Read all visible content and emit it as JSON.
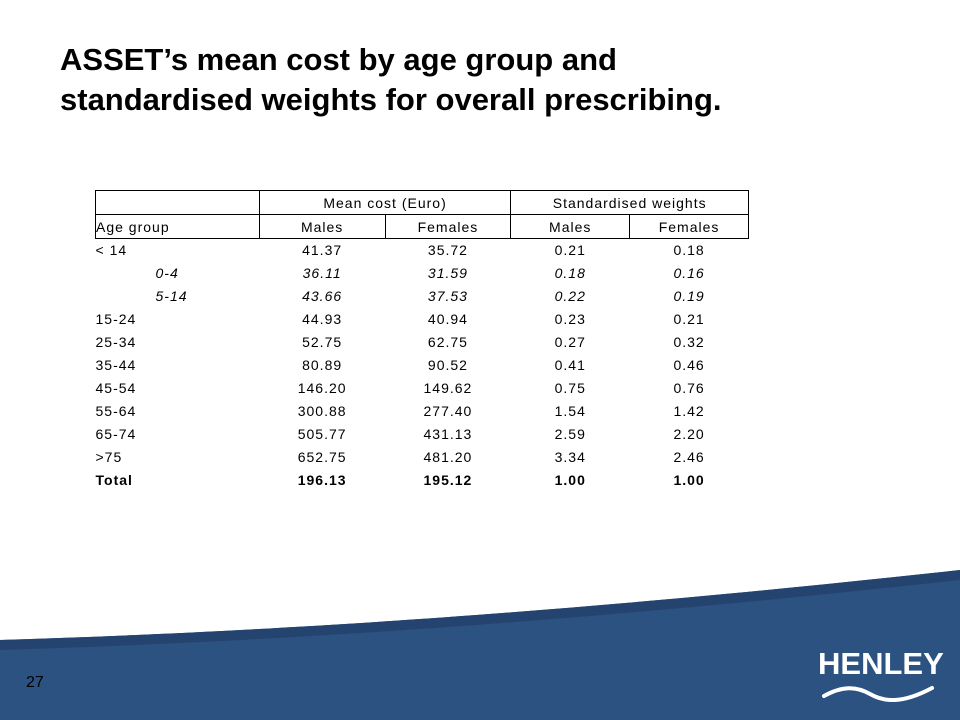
{
  "title": {
    "line1": "ASSET’s mean cost by age group and",
    "line2": "standardised weights for overall prescribing."
  },
  "table": {
    "group_headers": {
      "mean_cost": "Mean cost (Euro)",
      "weights": "Standardised weights"
    },
    "column_headers": {
      "age_group": "Age group",
      "males": "Males",
      "females": "Females",
      "w_males": "Males",
      "w_females": "Females"
    },
    "rows": [
      {
        "age": "< 14",
        "males": "41.37",
        "females": "35.72",
        "w_males": "0.21",
        "w_females": "0.18"
      },
      {
        "age": "0-4",
        "males": "36.11",
        "females": "31.59",
        "w_males": "0.18",
        "w_females": "0.16"
      },
      {
        "age": "5-14",
        "males": "43.66",
        "females": "37.53",
        "w_males": "0.22",
        "w_females": "0.19"
      },
      {
        "age": "15-24",
        "males": "44.93",
        "females": "40.94",
        "w_males": "0.23",
        "w_females": "0.21"
      },
      {
        "age": "25-34",
        "males": "52.75",
        "females": "62.75",
        "w_males": "0.27",
        "w_females": "0.32"
      },
      {
        "age": "35-44",
        "males": "80.89",
        "females": "90.52",
        "w_males": "0.41",
        "w_females": "0.46"
      },
      {
        "age": "45-54",
        "males": "146.20",
        "females": "149.62",
        "w_males": "0.75",
        "w_females": "0.76"
      },
      {
        "age": "55-64",
        "males": "300.88",
        "females": "277.40",
        "w_males": "1.54",
        "w_females": "1.42"
      },
      {
        "age": "65-74",
        "males": "505.77",
        "females": "431.13",
        "w_males": "2.59",
        "w_females": "2.20"
      },
      {
        "age": ">75",
        "males": "652.75",
        "females": "481.20",
        "w_males": "3.34",
        "w_females": "2.46"
      },
      {
        "age": "Total",
        "males": "196.13",
        "females": "195.12",
        "w_males": "1.00",
        "w_females": "1.00"
      }
    ]
  },
  "footer": {
    "page_number": "27",
    "logo_text": "HENLEY",
    "band_color": "#2c5282",
    "band_color_dark": "#24446f",
    "logo_color": "#ffffff"
  }
}
